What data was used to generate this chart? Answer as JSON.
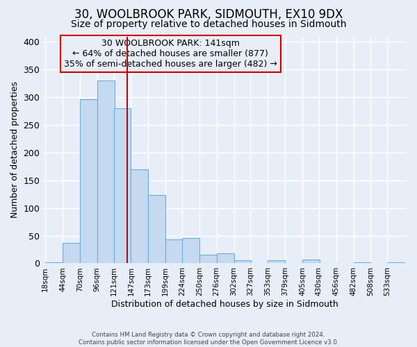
{
  "title": "30, WOOLBROOK PARK, SIDMOUTH, EX10 9DX",
  "subtitle": "Size of property relative to detached houses in Sidmouth",
  "xlabel": "Distribution of detached houses by size in Sidmouth",
  "ylabel": "Number of detached properties",
  "bin_labels": [
    "18sqm",
    "44sqm",
    "70sqm",
    "96sqm",
    "121sqm",
    "147sqm",
    "173sqm",
    "199sqm",
    "224sqm",
    "250sqm",
    "276sqm",
    "302sqm",
    "327sqm",
    "353sqm",
    "379sqm",
    "405sqm",
    "430sqm",
    "456sqm",
    "482sqm",
    "508sqm",
    "533sqm"
  ],
  "bin_edges": [
    18,
    44,
    70,
    96,
    121,
    147,
    173,
    199,
    224,
    250,
    276,
    302,
    327,
    353,
    379,
    405,
    430,
    456,
    482,
    508,
    533
  ],
  "bar_heights": [
    2,
    37,
    296,
    330,
    280,
    170,
    123,
    43,
    46,
    16,
    18,
    5,
    1,
    6,
    0,
    7,
    0,
    0,
    2,
    0,
    2
  ],
  "bar_color": "#c5d9f0",
  "bar_edgecolor": "#6aaed6",
  "vline_x": 141,
  "vline_color": "#cc0000",
  "annotation_title": "30 WOOLBROOK PARK: 141sqm",
  "annotation_line1": "← 64% of detached houses are smaller (877)",
  "annotation_line2": "35% of semi-detached houses are larger (482) →",
  "annotation_box_edgecolor": "#cc0000",
  "ylim": [
    0,
    410
  ],
  "yticks": [
    0,
    50,
    100,
    150,
    200,
    250,
    300,
    350,
    400
  ],
  "footer1": "Contains HM Land Registry data © Crown copyright and database right 2024.",
  "footer2": "Contains public sector information licensed under the Open Government Licence v3.0.",
  "background_color": "#e8eef8",
  "plot_bg_color": "#e8eef8",
  "grid_color": "#ffffff",
  "title_fontsize": 12,
  "subtitle_fontsize": 10,
  "annotation_fontsize": 9
}
